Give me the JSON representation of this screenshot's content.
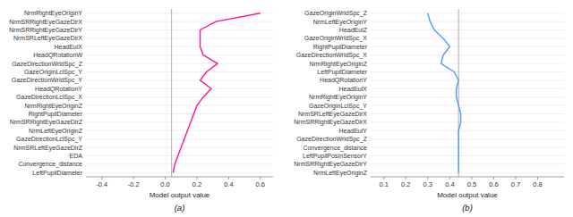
{
  "chart_data": [
    {
      "type": "line",
      "orientation": "horizontal",
      "categories": [
        "NrmRightEyeOriginY",
        "NrmSRRightEyeGazeDirX",
        "NrmSRRightEyeGazeDirY",
        "NrmSRLeftEyeGazeDirX",
        "HeadEulX",
        "HeadQRotationW",
        "GazeDirectionWrldSpc_Z",
        "GazeOriginLclSpc_Y",
        "GazeDirectionWrldSpc_Y",
        "HeadQRotationY",
        "GazeDirectionLclSpc_X",
        "NrmRightEyeOriginZ",
        "RightPupilDiameter",
        "NrmSRRightEyeGazeDirZ",
        "NrmLeftEyeOriginZ",
        "GazeDirectionLclSpc_Y",
        "NrmSRLeftEyeGazeDirZ",
        "EDA",
        "Convergence_distance",
        "LeftPupilDiameter"
      ],
      "values": [
        0.6,
        0.32,
        0.22,
        0.22,
        0.22,
        0.24,
        0.33,
        0.26,
        0.22,
        0.29,
        0.24,
        0.2,
        0.18,
        0.16,
        0.14,
        0.12,
        0.1,
        0.08,
        0.06,
        0.05
      ],
      "color": "#ff1493",
      "xlim": [
        -0.5,
        0.68
      ],
      "xticks": [
        -0.4,
        -0.2,
        {
          "value": 0.0,
          "label": "0.0"
        },
        0.2,
        0.4,
        0.6
      ],
      "vline": 0.04,
      "x_label": "Model output value",
      "annotation": "(a)",
      "grid": true
    },
    {
      "type": "line",
      "orientation": "horizontal",
      "categories": [
        "GazeOriginWrldSpc_Z",
        "NrmLeftEyeOriginY",
        "HeadEulZ",
        "GazeOriginWrldSpc_X",
        "RightPupilDiameter",
        "GazeDirectionWrldSpc_X",
        "NrmRightEyeOriginZ",
        "LeftPupilDiameter",
        "HeadQRotationY",
        "HeadEulX",
        "NrmRightEyeOriginY",
        "GazeOriginLclSpc_Y",
        "NrmSRLeftEyeGazeDirX",
        "NrmSRRightEyeGazeDirX",
        "HeadEulY",
        "GazeDirectionWrldSpc_Z",
        "Convergence_distance",
        "LeftPupilPosInSensorY",
        "NrmSRRightEyeGazeDirY",
        "NrmLeftEyeOriginZ"
      ],
      "values": [
        0.3,
        0.31,
        0.33,
        0.37,
        0.4,
        0.37,
        0.36,
        0.42,
        0.44,
        0.43,
        0.43,
        0.44,
        0.45,
        0.45,
        0.44,
        0.44,
        0.44,
        0.44,
        0.44,
        0.44
      ],
      "color": "#5599ff",
      "xlim": [
        0.04,
        0.92
      ],
      "xticks": [
        0.1,
        0.2,
        0.3,
        0.4,
        0.5,
        0.6,
        0.7,
        0.8
      ],
      "vline": 0.44,
      "x_label": "Model output value",
      "annotation": "(b)",
      "grid": true
    }
  ]
}
